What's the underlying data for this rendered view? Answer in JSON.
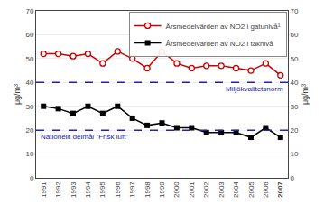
{
  "chart_data": {
    "type": "line",
    "x": [
      1991,
      1992,
      1993,
      1994,
      1995,
      1996,
      1997,
      1998,
      1999,
      2000,
      2001,
      2002,
      2003,
      2004,
      2005,
      2006,
      2007
    ],
    "series": [
      {
        "name": "Årsmedelvärden av NO2 i gatunivå¹",
        "color": "#cc0000",
        "marker": "circle-open",
        "values": [
          52,
          52,
          51,
          52,
          48,
          53,
          50,
          46,
          53,
          48,
          46,
          47,
          47,
          46,
          45,
          48,
          43
        ]
      },
      {
        "name": "Årsmedelvärden av NO2 i taknivå",
        "color": "#000000",
        "marker": "square",
        "values": [
          30,
          29,
          27,
          30,
          27,
          30,
          25,
          22,
          23,
          21,
          21,
          19,
          19,
          19,
          17,
          21,
          17
        ]
      }
    ],
    "reference_lines": [
      {
        "value": 40,
        "label": "Miljökvalitetsnorm",
        "color": "#2222aa",
        "line_style": "dashed"
      },
      {
        "value": 20,
        "label": "Nationellt delmål \"Frisk luft\"",
        "color": "#2222aa",
        "line_style": "dashed"
      }
    ],
    "ylabel": "μg/m³",
    "y2label": "μg/m³",
    "xlim": [
      1990.5,
      2007.5
    ],
    "xticks": [
      1991,
      1992,
      1993,
      1994,
      1995,
      1996,
      1997,
      1998,
      1999,
      2000,
      2001,
      2002,
      2003,
      2004,
      2005,
      2006,
      2007
    ],
    "ylim": [
      0,
      70
    ],
    "yticks": [
      0,
      10,
      20,
      30,
      40,
      50,
      60,
      70
    ],
    "y2lim": [
      0,
      70
    ],
    "y2ticks": [
      0,
      10,
      20,
      30,
      40,
      50,
      60,
      70
    ],
    "grid": "y",
    "legend": "upper right"
  }
}
